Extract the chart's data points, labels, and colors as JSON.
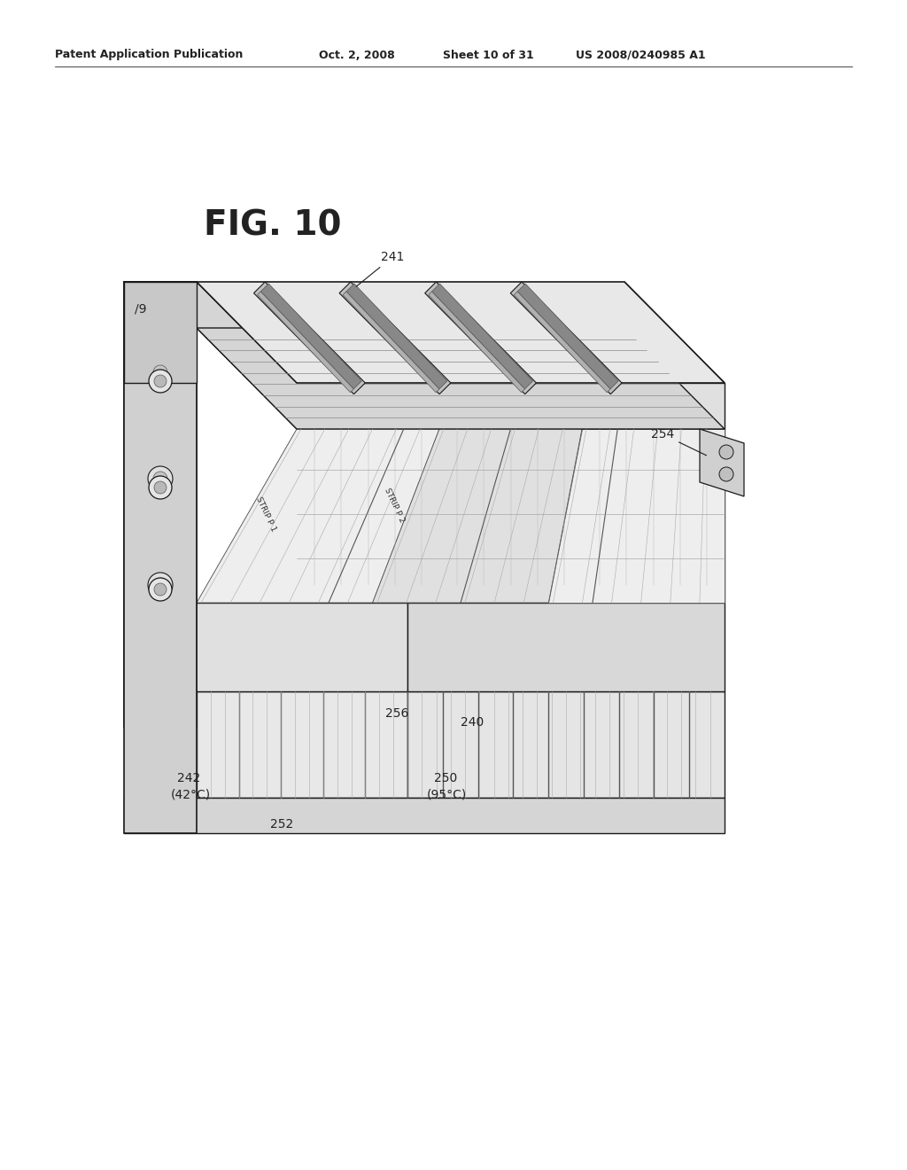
{
  "background_color": "#ffffff",
  "fig_width": 10.24,
  "fig_height": 13.2,
  "dpi": 100,
  "header_left": "Patent Application Publication",
  "header_mid": "Oct. 2, 2008",
  "header_sheet": "Sheet 10 of 31",
  "header_right": "US 2008/0240985 A1",
  "fig_label": "FIG. 10",
  "line_color": "#1a1a1a",
  "fill_white": "#ffffff",
  "fill_light": "#f0f0f0",
  "fill_mid": "#e0e0e0",
  "fill_dark": "#c8c8c8",
  "fill_hatch": "#d8d8d8",
  "anno_color": "#222222",
  "anno_fontsize": 10,
  "header_fontsize": 9
}
